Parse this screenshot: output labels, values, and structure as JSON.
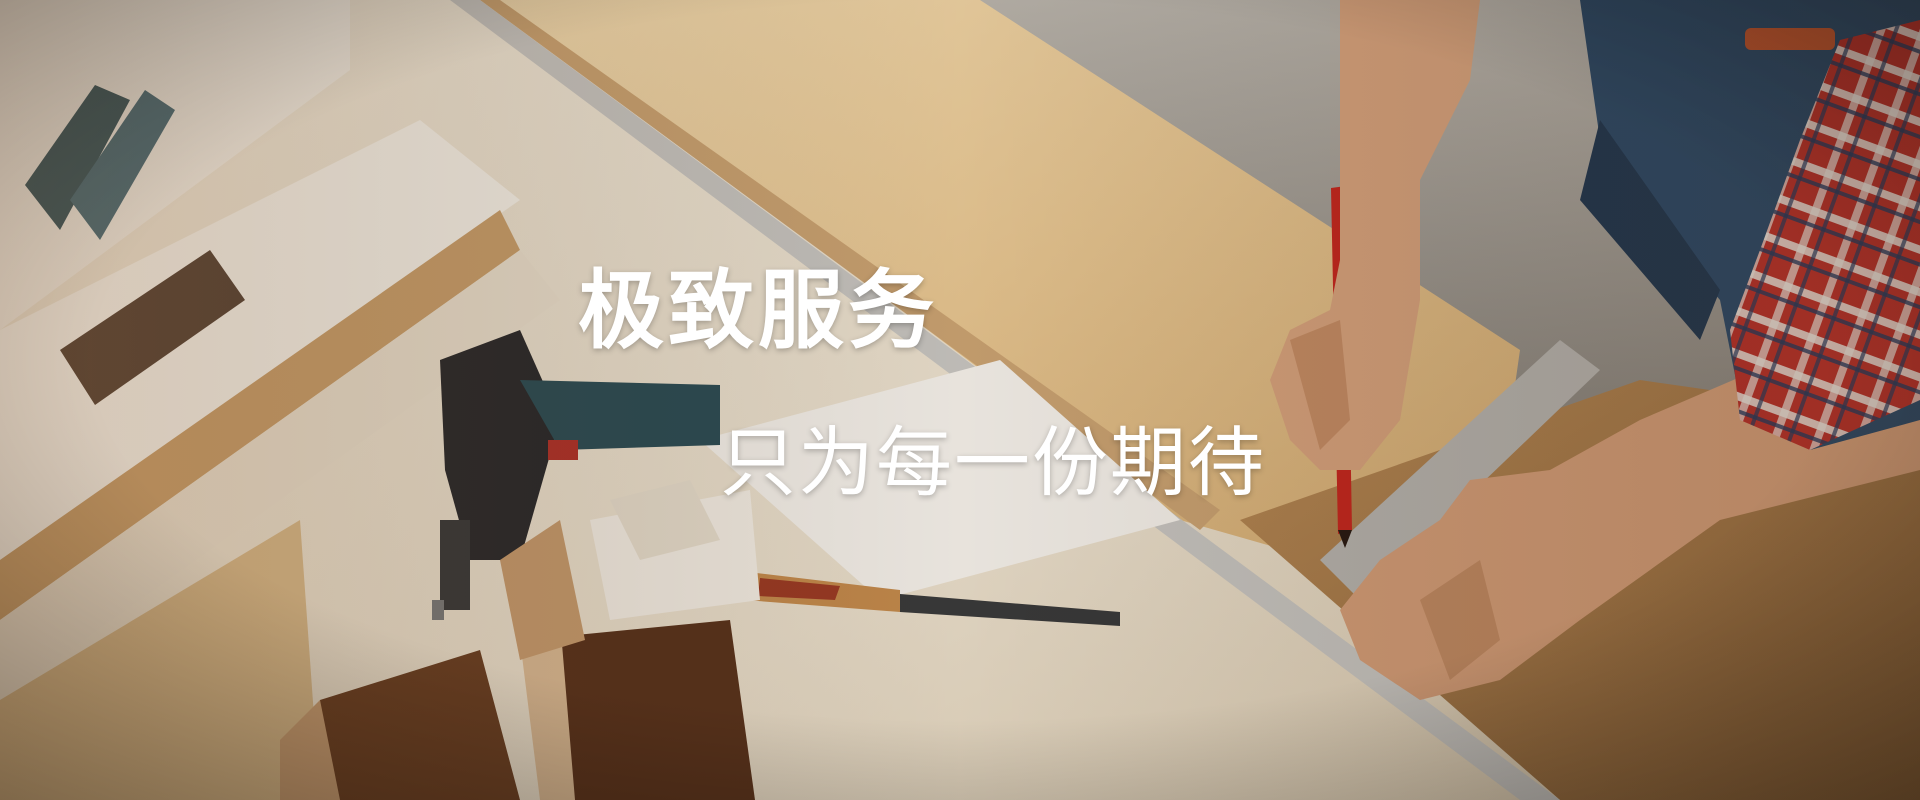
{
  "banner": {
    "headline": "极致服务",
    "subline": "只为每一份期待"
  },
  "colors": {
    "text": "#ffffff",
    "wood": "#e7c79a",
    "board": "#c9a06a",
    "pencil": "#c5281e",
    "shirt_plaid": "#b8322a",
    "jeans": "#2f4a66"
  }
}
